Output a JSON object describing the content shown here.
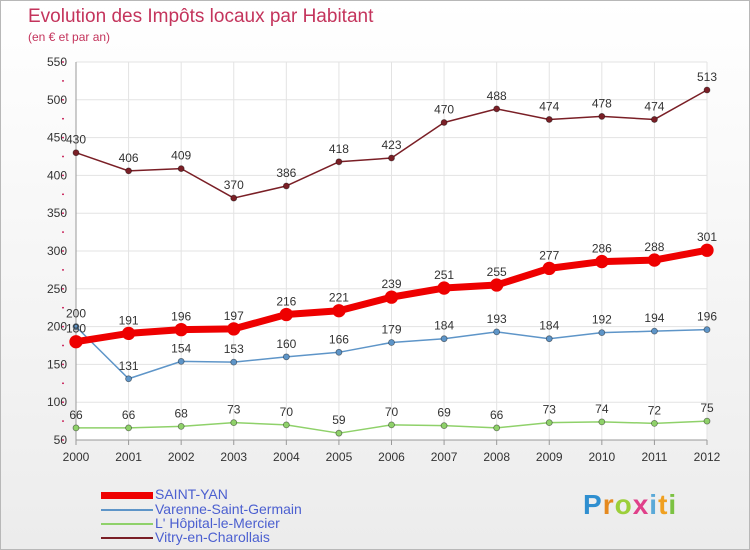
{
  "title": "Evolution des Impôts locaux par Habitant",
  "subtitle": "(en € et par an)",
  "logo_text": "Proxiti",
  "colors": {
    "title": "#c4345c",
    "legend_text": "#4b5fd0",
    "grid": "#e3e3e3",
    "axis": "#999999",
    "tick_mark": "#cc3366"
  },
  "chart_data": {
    "type": "line",
    "title": "Evolution des Impôts locaux par Habitant",
    "subtitle": "(en € et par an)",
    "categories": [
      "2000",
      "2001",
      "2002",
      "2003",
      "2004",
      "2005",
      "2006",
      "2007",
      "2008",
      "2009",
      "2010",
      "2011",
      "2012"
    ],
    "ylim": [
      50,
      550
    ],
    "yticks": [
      50,
      100,
      150,
      200,
      250,
      300,
      350,
      400,
      450,
      500,
      550
    ],
    "grid": true,
    "legend_position": "bottom-left",
    "series": [
      {
        "name": "SAINT-YAN",
        "color": "#ee0000",
        "width": 7,
        "values": [
          180,
          191,
          196,
          197,
          216,
          221,
          239,
          251,
          255,
          277,
          286,
          288,
          301
        ]
      },
      {
        "name": "Varenne-Saint-Germain",
        "color": "#5e95c8",
        "width": 1.5,
        "values": [
          200,
          131,
          154,
          153,
          160,
          166,
          179,
          184,
          193,
          184,
          192,
          194,
          196
        ]
      },
      {
        "name": "L' Hôpital-le-Mercier",
        "color": "#8fd16a",
        "width": 1.5,
        "values": [
          66,
          66,
          68,
          73,
          70,
          59,
          70,
          69,
          66,
          73,
          74,
          72,
          75
        ]
      },
      {
        "name": "Vitry-en-Charollais",
        "color": "#7a1f26",
        "width": 1.5,
        "values": [
          430,
          406,
          409,
          370,
          386,
          418,
          423,
          470,
          488,
          474,
          478,
          474,
          513
        ]
      }
    ]
  }
}
